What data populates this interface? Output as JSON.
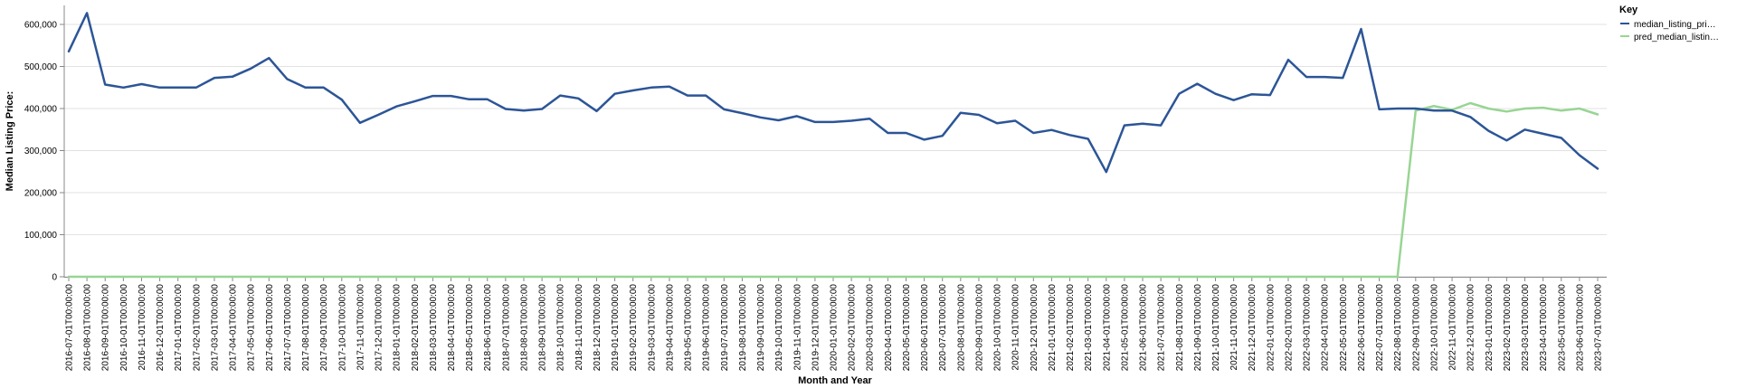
{
  "chart_data": {
    "type": "line",
    "title": "",
    "xlabel": "Month and Year",
    "ylabel": "Median Listing Price:",
    "ylim": [
      0,
      600000
    ],
    "yticks": [
      0,
      100000,
      200000,
      300000,
      400000,
      500000,
      600000
    ],
    "ytick_labels": [
      "0",
      "100,000",
      "200,000",
      "300,000",
      "400,000",
      "500,000",
      "600,000"
    ],
    "grid": true,
    "legend": {
      "title": "Key",
      "position": "right",
      "entries": [
        {
          "label": "median_listing_pri…",
          "color": "#2c5597"
        },
        {
          "label": "pred_median_listin…",
          "color": "#98d593"
        }
      ]
    },
    "x": [
      "2016-07-01T00:00:00",
      "2016-08-01T00:00:00",
      "2016-09-01T00:00:00",
      "2016-10-01T00:00:00",
      "2016-11-01T00:00:00",
      "2016-12-01T00:00:00",
      "2017-01-01T00:00:00",
      "2017-02-01T00:00:00",
      "2017-03-01T00:00:00",
      "2017-04-01T00:00:00",
      "2017-05-01T00:00:00",
      "2017-06-01T00:00:00",
      "2017-07-01T00:00:00",
      "2017-08-01T00:00:00",
      "2017-09-01T00:00:00",
      "2017-10-01T00:00:00",
      "2017-11-01T00:00:00",
      "2017-12-01T00:00:00",
      "2018-01-01T00:00:00",
      "2018-02-01T00:00:00",
      "2018-03-01T00:00:00",
      "2018-04-01T00:00:00",
      "2018-05-01T00:00:00",
      "2018-06-01T00:00:00",
      "2018-07-01T00:00:00",
      "2018-08-01T00:00:00",
      "2018-09-01T00:00:00",
      "2018-10-01T00:00:00",
      "2018-11-01T00:00:00",
      "2018-12-01T00:00:00",
      "2019-01-01T00:00:00",
      "2019-02-01T00:00:00",
      "2019-03-01T00:00:00",
      "2019-04-01T00:00:00",
      "2019-05-01T00:00:00",
      "2019-06-01T00:00:00",
      "2019-07-01T00:00:00",
      "2019-08-01T00:00:00",
      "2019-09-01T00:00:00",
      "2019-10-01T00:00:00",
      "2019-11-01T00:00:00",
      "2019-12-01T00:00:00",
      "2020-01-01T00:00:00",
      "2020-02-01T00:00:00",
      "2020-03-01T00:00:00",
      "2020-04-01T00:00:00",
      "2020-05-01T00:00:00",
      "2020-06-01T00:00:00",
      "2020-07-01T00:00:00",
      "2020-08-01T00:00:00",
      "2020-09-01T00:00:00",
      "2020-10-01T00:00:00",
      "2020-11-01T00:00:00",
      "2020-12-01T00:00:00",
      "2021-01-01T00:00:00",
      "2021-02-01T00:00:00",
      "2021-03-01T00:00:00",
      "2021-04-01T00:00:00",
      "2021-05-01T00:00:00",
      "2021-06-01T00:00:00",
      "2021-07-01T00:00:00",
      "2021-08-01T00:00:00",
      "2021-09-01T00:00:00",
      "2021-10-01T00:00:00",
      "2021-11-01T00:00:00",
      "2021-12-01T00:00:00",
      "2022-01-01T00:00:00",
      "2022-02-01T00:00:00",
      "2022-03-01T00:00:00",
      "2022-04-01T00:00:00",
      "2022-05-01T00:00:00",
      "2022-06-01T00:00:00",
      "2022-07-01T00:00:00",
      "2022-08-01T00:00:00",
      "2022-09-01T00:00:00",
      "2022-10-01T00:00:00",
      "2022-11-01T00:00:00",
      "2022-12-01T00:00:00",
      "2023-01-01T00:00:00",
      "2023-02-01T00:00:00",
      "2023-03-01T00:00:00",
      "2023-04-01T00:00:00",
      "2023-05-01T00:00:00",
      "2023-06-01T00:00:00",
      "2023-07-01T00:00:00"
    ],
    "series": [
      {
        "name": "median_listing_pri…",
        "color": "#2c5597",
        "values": [
          536000,
          627000,
          457000,
          450000,
          458000,
          450000,
          450000,
          450000,
          473000,
          476000,
          495000,
          520000,
          470000,
          450000,
          450000,
          421000,
          366000,
          385000,
          405000,
          417000,
          430000,
          430000,
          422000,
          422000,
          399000,
          395000,
          399000,
          431000,
          424000,
          394000,
          435000,
          443000,
          450000,
          452000,
          431000,
          431000,
          398000,
          389000,
          379000,
          372000,
          382000,
          368000,
          368000,
          371000,
          376000,
          342000,
          342000,
          326000,
          335000,
          390000,
          385000,
          365000,
          371000,
          342000,
          349000,
          337000,
          328000,
          249000,
          360000,
          364000,
          360000,
          435000,
          459000,
          435000,
          420000,
          434000,
          432000,
          516000,
          475000,
          475000,
          473000,
          589000,
          398000,
          400000,
          400000,
          395000,
          395000,
          380000,
          347000,
          324000,
          350000,
          340000,
          330000,
          289000,
          257000
        ]
      },
      {
        "name": "pred_median_listin…",
        "color": "#98d593",
        "values": [
          0,
          0,
          0,
          0,
          0,
          0,
          0,
          0,
          0,
          0,
          0,
          0,
          0,
          0,
          0,
          0,
          0,
          0,
          0,
          0,
          0,
          0,
          0,
          0,
          0,
          0,
          0,
          0,
          0,
          0,
          0,
          0,
          0,
          0,
          0,
          0,
          0,
          0,
          0,
          0,
          0,
          0,
          0,
          0,
          0,
          0,
          0,
          0,
          0,
          0,
          0,
          0,
          0,
          0,
          0,
          0,
          0,
          0,
          0,
          0,
          0,
          0,
          0,
          0,
          0,
          0,
          0,
          0,
          0,
          0,
          0,
          0,
          0,
          0,
          395000,
          406000,
          397000,
          413000,
          400000,
          393000,
          400000,
          402000,
          395000,
          400000,
          386000
        ]
      }
    ]
  }
}
